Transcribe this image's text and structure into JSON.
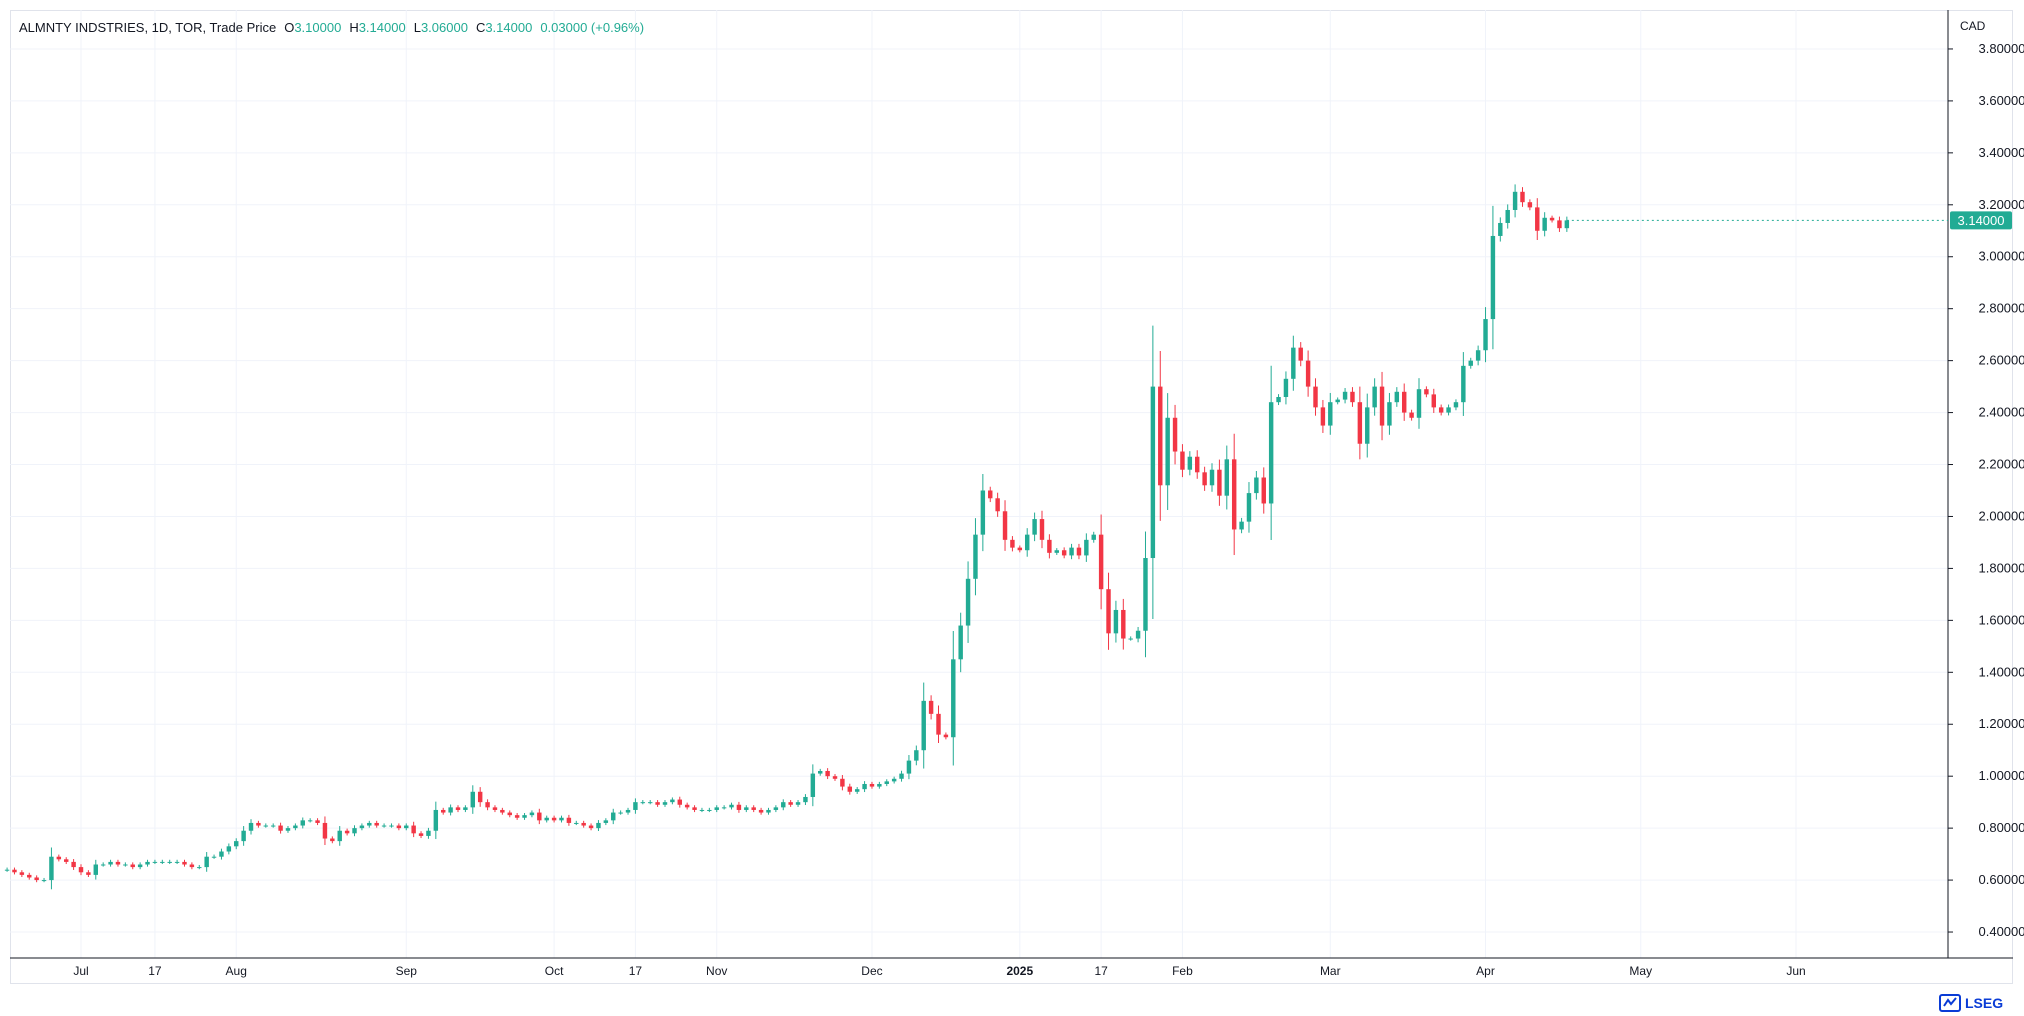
{
  "legend": {
    "symbol": "ALMNTY INDSTRIES, 1D, TOR, Trade Price",
    "open_label": "O",
    "open": "3.10000",
    "high_label": "H",
    "high": "3.14000",
    "low_label": "L",
    "low": "3.06000",
    "close_label": "C",
    "close": "3.14000",
    "change": "0.03000 (+0.96%)"
  },
  "currency": "CAD",
  "last_price_label": "3.14000",
  "logo_text": "LSEG",
  "colors": {
    "up": "#22ab94",
    "down": "#f23645",
    "grid": "#f0f3fa",
    "axis": "#131722",
    "last_bg": "#22ab94"
  },
  "chart_data": {
    "type": "candlestick",
    "ylim": [
      0.3,
      3.95
    ],
    "y_ticks": [
      "0.40000",
      "0.60000",
      "0.80000",
      "1.00000",
      "1.20000",
      "1.40000",
      "1.60000",
      "1.80000",
      "2.00000",
      "2.20000",
      "2.40000",
      "2.60000",
      "2.80000",
      "3.00000",
      "3.20000",
      "3.40000",
      "3.60000",
      "3.80000"
    ],
    "x_ticks": [
      {
        "day": 0,
        "label": "Jul",
        "bold": false
      },
      {
        "day": 10,
        "label": "17",
        "bold": false
      },
      {
        "day": 21,
        "label": "Aug",
        "bold": false
      },
      {
        "day": 44,
        "label": "Sep",
        "bold": false
      },
      {
        "day": 64,
        "label": "Oct",
        "bold": false
      },
      {
        "day": 75,
        "label": "17",
        "bold": false
      },
      {
        "day": 86,
        "label": "Nov",
        "bold": false
      },
      {
        "day": 107,
        "label": "Dec",
        "bold": false
      },
      {
        "day": 127,
        "label": "2025",
        "bold": true
      },
      {
        "day": 138,
        "label": "17",
        "bold": false
      },
      {
        "day": 149,
        "label": "Feb",
        "bold": false
      },
      {
        "day": 169,
        "label": "Mar",
        "bold": false
      },
      {
        "day": 190,
        "label": "Apr",
        "bold": false
      },
      {
        "day": 211,
        "label": "May",
        "bold": false
      },
      {
        "day": 232,
        "label": "Jun",
        "bold": false
      }
    ],
    "closes": [
      0.64,
      0.63,
      0.62,
      0.61,
      0.6,
      0.6,
      0.69,
      0.68,
      0.67,
      0.65,
      0.63,
      0.62,
      0.66,
      0.66,
      0.67,
      0.66,
      0.66,
      0.65,
      0.66,
      0.67,
      0.67,
      0.67,
      0.67,
      0.67,
      0.66,
      0.65,
      0.65,
      0.69,
      0.69,
      0.71,
      0.73,
      0.75,
      0.79,
      0.82,
      0.81,
      0.81,
      0.81,
      0.79,
      0.8,
      0.81,
      0.83,
      0.83,
      0.82,
      0.76,
      0.75,
      0.79,
      0.78,
      0.8,
      0.81,
      0.82,
      0.81,
      0.81,
      0.81,
      0.8,
      0.81,
      0.78,
      0.77,
      0.79,
      0.87,
      0.86,
      0.88,
      0.87,
      0.88,
      0.94,
      0.9,
      0.88,
      0.87,
      0.86,
      0.85,
      0.84,
      0.85,
      0.86,
      0.83,
      0.84,
      0.83,
      0.84,
      0.82,
      0.82,
      0.81,
      0.8,
      0.82,
      0.83,
      0.86,
      0.86,
      0.87,
      0.9,
      0.9,
      0.9,
      0.89,
      0.9,
      0.91,
      0.89,
      0.88,
      0.87,
      0.87,
      0.87,
      0.88,
      0.88,
      0.89,
      0.87,
      0.88,
      0.87,
      0.86,
      0.87,
      0.88,
      0.9,
      0.89,
      0.9,
      0.92,
      1.01,
      1.02,
      1.0,
      0.99,
      0.96,
      0.94,
      0.95,
      0.97,
      0.96,
      0.97,
      0.98,
      0.99,
      1.01,
      1.06,
      1.1,
      1.29,
      1.24,
      1.16,
      1.15,
      1.45,
      1.58,
      1.76,
      1.93,
      2.1,
      2.07,
      2.02,
      1.91,
      1.88,
      1.87,
      1.93,
      1.99,
      1.91,
      1.86,
      1.87,
      1.85,
      1.88,
      1.85,
      1.91,
      1.93,
      1.72,
      1.55,
      1.64,
      1.53,
      1.53,
      1.56,
      1.84,
      2.5,
      2.12,
      2.38,
      2.25,
      2.18,
      2.23,
      2.17,
      2.12,
      2.18,
      2.08,
      2.22,
      1.95,
      1.98,
      2.09,
      2.15,
      2.05,
      2.44,
      2.46,
      2.53,
      2.65,
      2.6,
      2.5,
      2.42,
      2.35,
      2.44,
      2.45,
      2.48,
      2.44,
      2.28,
      2.42,
      2.5,
      2.35,
      2.44,
      2.48,
      2.4,
      2.38,
      2.49,
      2.47,
      2.42,
      2.4,
      2.42,
      2.44,
      2.58,
      2.6,
      2.64,
      2.76,
      3.08,
      3.13,
      3.18,
      3.25,
      3.21,
      3.19,
      3.1,
      3.15,
      3.14,
      3.11,
      3.14
    ]
  }
}
